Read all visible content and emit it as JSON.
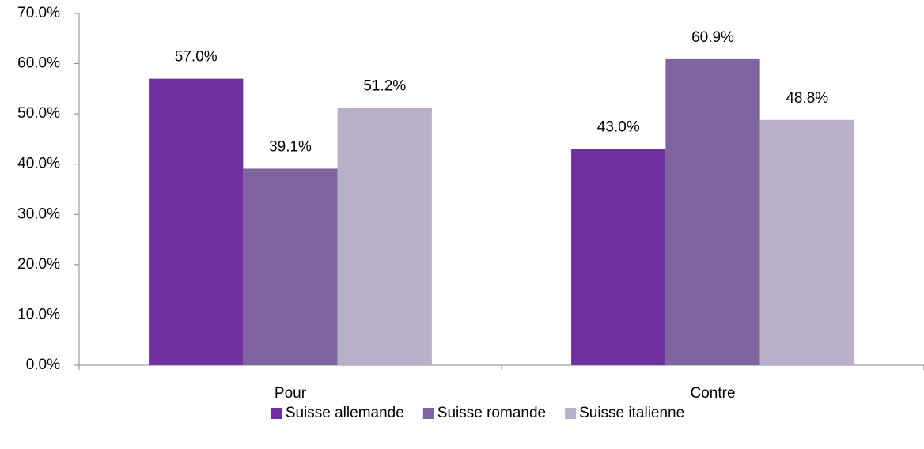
{
  "chart_data": {
    "type": "bar",
    "categories": [
      "Pour",
      "Contre"
    ],
    "series": [
      {
        "name": "Suisse allemande",
        "color": "#7030a0",
        "values": [
          57.0,
          43.0
        ],
        "value_labels": [
          "57.0%",
          "43.0%"
        ]
      },
      {
        "name": "Suisse romande",
        "color": "#8064a2",
        "values": [
          39.1,
          60.9
        ],
        "value_labels": [
          "39.1%",
          "60.9%"
        ]
      },
      {
        "name": "Suisse italienne",
        "color": "#b9afc9",
        "values": [
          51.2,
          48.8
        ],
        "value_labels": [
          "51.2%",
          "48.8%"
        ]
      }
    ],
    "ylim": [
      0,
      70
    ],
    "yticks": [
      {
        "value": 0,
        "label": "0.0%"
      },
      {
        "value": 10,
        "label": "10.0%"
      },
      {
        "value": 20,
        "label": "20.0%"
      },
      {
        "value": 30,
        "label": "30.0%"
      },
      {
        "value": 40,
        "label": "40.0%"
      },
      {
        "value": 50,
        "label": "50.0%"
      },
      {
        "value": 60,
        "label": "60.0%"
      },
      {
        "value": 70,
        "label": "70.0%"
      }
    ],
    "grid": false,
    "legend": "bottom"
  }
}
